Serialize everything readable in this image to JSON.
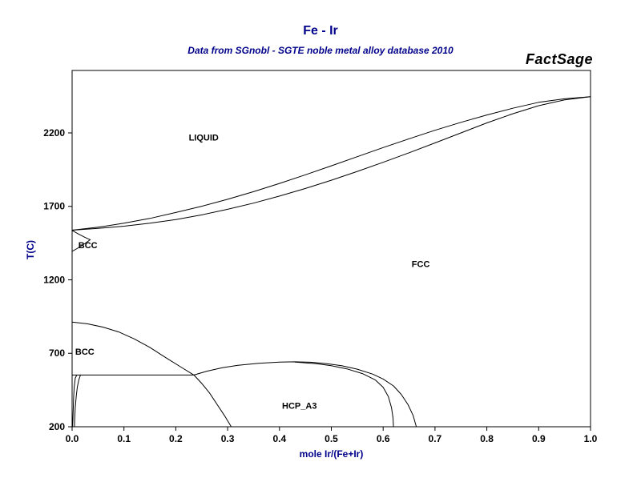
{
  "chart_data": {
    "type": "line",
    "title": "Fe - Ir",
    "subtitle": "Data from SGnobl - SGTE noble metal alloy database 2010",
    "watermark": "FactSage",
    "xlabel": "mole Ir/(Fe+Ir)",
    "ylabel": "T(C)",
    "xlim": [
      0,
      1
    ],
    "ylim": [
      200,
      2625
    ],
    "grid": false,
    "legend": "none",
    "colors": {
      "accent": "#00008B",
      "curve": "#000000",
      "axis": "#000000",
      "tick_text": "#000000"
    },
    "xticks": {
      "values": [
        0,
        0.1,
        0.2,
        0.3,
        0.4,
        0.5,
        0.6,
        0.7,
        0.8,
        0.9,
        1.0
      ],
      "labels": [
        "0.0",
        "0.1",
        "0.2",
        "0.3",
        "0.4",
        "0.5",
        "0.6",
        "0.7",
        "0.8",
        "0.9",
        "1.0"
      ]
    },
    "yticks": {
      "values": [
        200,
        700,
        1200,
        1700,
        2200
      ],
      "labels": [
        "200",
        "700",
        "1200",
        "1700",
        "2200"
      ]
    },
    "phase_labels": [
      {
        "text": "LIQUID",
        "x": 0.225,
        "T": 2170
      },
      {
        "text": "BCC",
        "x": 0.012,
        "T": 1438
      },
      {
        "text": "FCC",
        "x": 0.655,
        "T": 1310
      },
      {
        "text": "BCC",
        "x": 0.006,
        "T": 712
      },
      {
        "text": "HCP_A3",
        "x": 0.405,
        "T": 345
      }
    ],
    "series": [
      {
        "name": "liquidus",
        "points": [
          [
            0,
            1538
          ],
          [
            0.05,
            1558
          ],
          [
            0.1,
            1585
          ],
          [
            0.15,
            1618
          ],
          [
            0.2,
            1658
          ],
          [
            0.25,
            1701
          ],
          [
            0.3,
            1748
          ],
          [
            0.35,
            1800
          ],
          [
            0.4,
            1856
          ],
          [
            0.45,
            1915
          ],
          [
            0.5,
            1976
          ],
          [
            0.55,
            2038
          ],
          [
            0.6,
            2100
          ],
          [
            0.65,
            2160
          ],
          [
            0.7,
            2218
          ],
          [
            0.75,
            2272
          ],
          [
            0.8,
            2322
          ],
          [
            0.85,
            2368
          ],
          [
            0.9,
            2408
          ],
          [
            0.95,
            2432
          ],
          [
            1,
            2447
          ]
        ]
      },
      {
        "name": "solidus",
        "points": [
          [
            0,
            1538
          ],
          [
            0.05,
            1550
          ],
          [
            0.1,
            1565
          ],
          [
            0.15,
            1585
          ],
          [
            0.2,
            1610
          ],
          [
            0.25,
            1642
          ],
          [
            0.3,
            1680
          ],
          [
            0.35,
            1722
          ],
          [
            0.4,
            1770
          ],
          [
            0.45,
            1822
          ],
          [
            0.5,
            1878
          ],
          [
            0.55,
            1938
          ],
          [
            0.6,
            2000
          ],
          [
            0.65,
            2065
          ],
          [
            0.7,
            2132
          ],
          [
            0.75,
            2200
          ],
          [
            0.8,
            2268
          ],
          [
            0.85,
            2330
          ],
          [
            0.9,
            2385
          ],
          [
            0.95,
            2425
          ],
          [
            1,
            2447
          ]
        ]
      },
      {
        "name": "delta-bcc-upper",
        "points": [
          [
            0,
            1536
          ],
          [
            0.012,
            1512
          ],
          [
            0.025,
            1488
          ],
          [
            0.035,
            1473
          ]
        ]
      },
      {
        "name": "delta-bcc-lower",
        "points": [
          [
            0,
            1394
          ],
          [
            0.012,
            1418
          ],
          [
            0.025,
            1448
          ],
          [
            0.035,
            1473
          ]
        ]
      },
      {
        "name": "fcc-bcc-boundary",
        "points": [
          [
            0,
            912
          ],
          [
            0.03,
            900
          ],
          [
            0.06,
            878
          ],
          [
            0.09,
            845
          ],
          [
            0.12,
            798
          ],
          [
            0.15,
            740
          ],
          [
            0.18,
            672
          ],
          [
            0.21,
            606
          ],
          [
            0.235,
            552
          ]
        ]
      },
      {
        "name": "eutectoid-line",
        "points": [
          [
            0,
            552
          ],
          [
            0.235,
            552
          ]
        ]
      },
      {
        "name": "alpha-solvus",
        "points": [
          [
            0.016,
            552
          ],
          [
            0.013,
            520
          ],
          [
            0.01,
            470
          ],
          [
            0.008,
            410
          ],
          [
            0.006,
            330
          ],
          [
            0.005,
            250
          ],
          [
            0.0045,
            200
          ]
        ]
      },
      {
        "name": "alpha-boundary-left",
        "points": [
          [
            0.001,
            200
          ],
          [
            0.002,
            300
          ],
          [
            0.003,
            400
          ],
          [
            0.004,
            470
          ],
          [
            0.006,
            530
          ],
          [
            0.009,
            552
          ]
        ]
      },
      {
        "name": "hcp-left-boundary",
        "points": [
          [
            0.235,
            552
          ],
          [
            0.25,
            495
          ],
          [
            0.265,
            430
          ],
          [
            0.28,
            350
          ],
          [
            0.295,
            270
          ],
          [
            0.307,
            200
          ]
        ]
      },
      {
        "name": "hcp-dome",
        "points": [
          [
            0.235,
            552
          ],
          [
            0.26,
            578
          ],
          [
            0.29,
            602
          ],
          [
            0.32,
            618
          ],
          [
            0.36,
            632
          ],
          [
            0.4,
            640
          ],
          [
            0.43,
            642
          ],
          [
            0.46,
            639
          ],
          [
            0.49,
            630
          ],
          [
            0.52,
            615
          ],
          [
            0.55,
            592
          ],
          [
            0.58,
            558
          ],
          [
            0.6,
            525
          ],
          [
            0.62,
            478
          ],
          [
            0.635,
            420
          ],
          [
            0.648,
            350
          ],
          [
            0.658,
            275
          ],
          [
            0.664,
            200
          ]
        ]
      },
      {
        "name": "hcp-solvus",
        "points": [
          [
            0.43,
            640
          ],
          [
            0.47,
            630
          ],
          [
            0.5,
            616
          ],
          [
            0.53,
            594
          ],
          [
            0.56,
            562
          ],
          [
            0.585,
            518
          ],
          [
            0.6,
            468
          ],
          [
            0.61,
            405
          ],
          [
            0.616,
            330
          ],
          [
            0.619,
            260
          ],
          [
            0.62,
            200
          ]
        ]
      }
    ]
  }
}
